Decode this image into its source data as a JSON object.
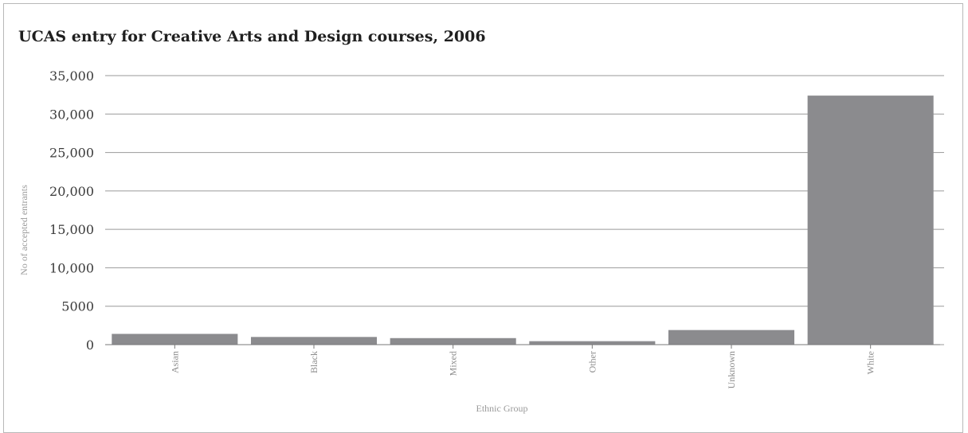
{
  "chart_data": {
    "type": "bar",
    "title": "UCAS entry for Creative Arts and Design courses, 2006",
    "xlabel": "Ethnic Group",
    "ylabel": "No of accepted entrants",
    "categories": [
      "Asian",
      "Black",
      "Mixed",
      "Other",
      "Unknown",
      "White"
    ],
    "values": [
      1400,
      1000,
      850,
      450,
      1900,
      32400
    ],
    "ylim": [
      0,
      35000
    ],
    "yticks": [
      0,
      5000,
      10000,
      15000,
      20000,
      25000,
      30000,
      35000
    ],
    "ytick_labels": [
      "0",
      "5000",
      "10,000",
      "15,000",
      "20,000",
      "25,000",
      "30,000",
      "35,000"
    ],
    "grid": true,
    "legend": "none",
    "colors": {
      "bar": "#8b8b8e",
      "grid": "#9a9a9a",
      "axis": "#7a7a7a"
    }
  }
}
